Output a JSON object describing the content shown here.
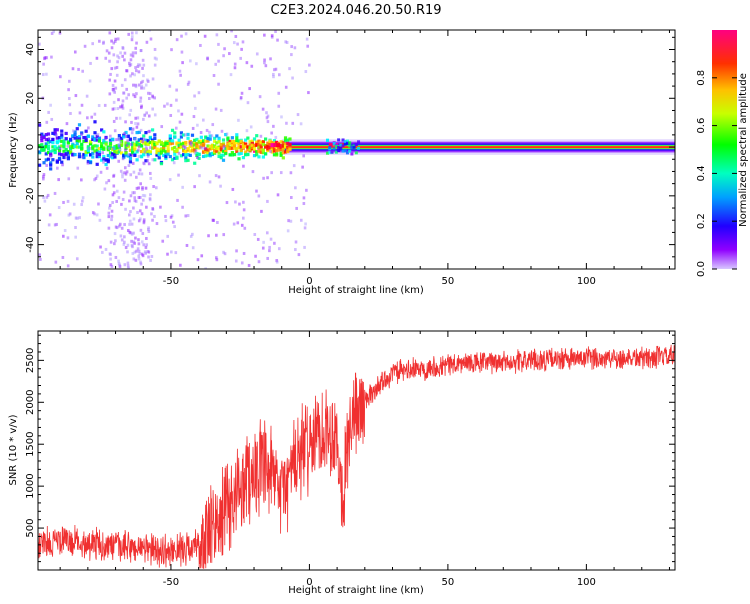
{
  "figure_title": "C2E3.2024.046.20.50.R19",
  "colors": {
    "snr_line": "#f03030",
    "axis": "#000000",
    "background": "#ffffff"
  },
  "chart_data": [
    {
      "type": "heatmap",
      "title": "",
      "xlabel": "Height of straight line (km)",
      "ylabel": "Frequency (Hz)",
      "xlim": [
        -98,
        132
      ],
      "ylim": [
        -50,
        48
      ],
      "x_ticks": [
        -50,
        0,
        50,
        100
      ],
      "y_ticks": [
        -40,
        -20,
        0,
        20,
        40
      ],
      "colorbar": {
        "label": "Normalized spectral amplitude",
        "range": [
          0.0,
          1.0
        ],
        "ticks": [
          0.0,
          0.2,
          0.4,
          0.6,
          0.8
        ],
        "colormap": [
          "#b8b8ff",
          "#8800ff",
          "#0000ff",
          "#00ffff",
          "#00ff00",
          "#ffff00",
          "#ff8800",
          "#ff0000",
          "#ff00aa"
        ]
      },
      "description_data": {
        "line_frequency_hz": 0,
        "noisy_region_km": [
          -98,
          -10
        ],
        "clean_region_km": [
          -10,
          132
        ],
        "noisy_band_hz": [
          -12,
          10
        ],
        "peak_amplitude": 1.0
      }
    },
    {
      "type": "line",
      "title": "",
      "xlabel": "Height of straight line (km)",
      "ylabel": "SNR (10 * v/v)",
      "xlim": [
        -98,
        132
      ],
      "ylim": [
        0,
        2850
      ],
      "x_ticks": [
        -50,
        0,
        50,
        100
      ],
      "y_ticks": [
        500,
        1000,
        1500,
        2000,
        2500
      ],
      "series": [
        {
          "x": [
            -98,
            -90,
            -80,
            -70,
            -60,
            -50,
            -40,
            -35,
            -30,
            -25,
            -20,
            -15,
            -10,
            -5,
            0,
            5,
            10,
            12,
            15,
            20,
            25,
            30,
            40,
            50,
            60,
            70,
            80,
            90,
            100,
            110,
            120,
            132
          ],
          "values": [
            300,
            350,
            320,
            280,
            250,
            220,
            300,
            450,
            700,
            1000,
            1200,
            1150,
            900,
            1300,
            1500,
            1700,
            1600,
            900,
            1800,
            2000,
            2200,
            2350,
            2400,
            2450,
            2470,
            2480,
            2500,
            2510,
            2520,
            2530,
            2530,
            2540
          ]
        }
      ]
    }
  ]
}
